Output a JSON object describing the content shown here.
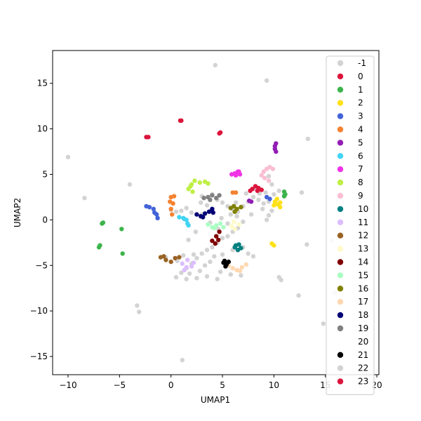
{
  "chart_data": {
    "type": "scatter",
    "title": "",
    "xlabel": "UMAP1",
    "ylabel": "UMAP2",
    "xlim": [
      -11.5,
      20.2
    ],
    "ylim": [
      -17.0,
      18.6
    ],
    "xticks": [
      -10,
      -5,
      0,
      5,
      10,
      15,
      20
    ],
    "yticks": [
      -15,
      -10,
      -5,
      0,
      5,
      10,
      15
    ],
    "grid": false,
    "legend_position": "upper-right",
    "series": [
      {
        "name": "-1",
        "color": "#d3d3d3",
        "points": [
          [
            -10.0,
            6.9
          ],
          [
            -8.4,
            2.4
          ],
          [
            -4.0,
            3.9
          ],
          [
            -3.3,
            -9.4
          ],
          [
            -3.1,
            -10.1
          ],
          [
            1.1,
            -15.4
          ],
          [
            4.3,
            17.0
          ],
          [
            9.3,
            15.3
          ],
          [
            13.3,
            8.9
          ],
          [
            12.7,
            3.0
          ],
          [
            13.2,
            -2.7
          ],
          [
            14.8,
            -11.4
          ],
          [
            10.5,
            -6.3
          ],
          [
            15.6,
            -2.3
          ],
          [
            3.0,
            2.6
          ],
          [
            3.5,
            1.6
          ],
          [
            4.0,
            2.8
          ],
          [
            4.5,
            2.2
          ],
          [
            5.0,
            1.9
          ],
          [
            5.5,
            1.5
          ],
          [
            6.0,
            1.2
          ],
          [
            6.5,
            0.9
          ],
          [
            7.0,
            1.5
          ],
          [
            7.5,
            2.0
          ],
          [
            8.0,
            2.5
          ],
          [
            8.5,
            2.2
          ],
          [
            9.0,
            1.8
          ],
          [
            9.5,
            2.0
          ],
          [
            10.0,
            2.8
          ],
          [
            10.5,
            3.2
          ],
          [
            11.0,
            2.7
          ],
          [
            9.8,
            1.0
          ],
          [
            9.5,
            0.5
          ],
          [
            9.3,
            0.0
          ],
          [
            8.9,
            1.2
          ],
          [
            7.8,
            0.6
          ],
          [
            7.0,
            -0.2
          ],
          [
            6.5,
            -0.9
          ],
          [
            6.0,
            -1.3
          ],
          [
            5.5,
            -1.8
          ],
          [
            5.0,
            -2.0
          ],
          [
            4.5,
            -2.5
          ],
          [
            4.0,
            -3.0
          ],
          [
            3.5,
            -3.3
          ],
          [
            3.0,
            -3.7
          ],
          [
            2.5,
            -4.2
          ],
          [
            2.0,
            -4.8
          ],
          [
            1.5,
            -5.3
          ],
          [
            1.0,
            -5.8
          ],
          [
            0.5,
            -6.3
          ],
          [
            1.5,
            -6.5
          ],
          [
            2.5,
            -6.4
          ],
          [
            3.5,
            -6.2
          ],
          [
            4.5,
            -6.5
          ],
          [
            1.8,
            -5.9
          ],
          [
            2.2,
            -3.8
          ],
          [
            3.8,
            -4.6
          ],
          [
            4.2,
            -4.0
          ],
          [
            5.0,
            -3.8
          ],
          [
            6.0,
            -3.3
          ],
          [
            7.0,
            -3.0
          ],
          [
            7.5,
            -3.7
          ],
          [
            8.0,
            -4.0
          ],
          [
            1.0,
            1.0
          ],
          [
            1.5,
            1.3
          ],
          [
            2.0,
            0.8
          ],
          [
            0.5,
            0.9
          ],
          [
            0.0,
            1.1
          ],
          [
            3.8,
            -0.3
          ],
          [
            4.6,
            -1.0
          ],
          [
            5.5,
            -0.4
          ],
          [
            6.4,
            0.4
          ],
          [
            8.2,
            3.4
          ],
          [
            9.5,
            4.8
          ],
          [
            9.8,
            3.9
          ],
          [
            9.2,
            3.0
          ],
          [
            8.6,
            2.9
          ],
          [
            7.3,
            2.9
          ],
          [
            6.3,
            1.9
          ],
          [
            5.8,
            0.6
          ],
          [
            3.0,
            0.6
          ],
          [
            1.2,
            -3.9
          ],
          [
            0.6,
            -4.5
          ],
          [
            -0.5,
            -4.1
          ],
          [
            2.8,
            -5.6
          ],
          [
            3.3,
            -5.0
          ],
          [
            4.8,
            -5.7
          ],
          [
            5.8,
            -6.0
          ],
          [
            6.8,
            -6.1
          ],
          [
            2.9,
            1.9
          ],
          [
            4.9,
            0.2
          ],
          [
            2.4,
            -1.3
          ],
          [
            1.7,
            -2.2
          ],
          [
            10.7,
            -6.6
          ],
          [
            12.4,
            -8.3
          ],
          [
            15.9,
            -8.0
          ]
        ]
      },
      {
        "name": "0",
        "color": "#dc143c",
        "points": [
          [
            -2.4,
            9.1
          ],
          [
            -2.2,
            9.1
          ],
          [
            0.9,
            10.9
          ],
          [
            1.0,
            10.9
          ],
          [
            4.7,
            9.5
          ],
          [
            4.8,
            9.6
          ],
          [
            7.9,
            3.4
          ],
          [
            8.2,
            3.7
          ],
          [
            8.5,
            3.5
          ],
          [
            8.8,
            3.3
          ],
          [
            7.7,
            3.2
          ],
          [
            8.4,
            3.2
          ],
          [
            6.5,
            -3.3
          ]
        ]
      },
      {
        "name": "1",
        "color": "#3cb44b",
        "points": [
          [
            -6.7,
            -0.4
          ],
          [
            -6.6,
            -0.3
          ],
          [
            -7.0,
            -3.0
          ],
          [
            -6.9,
            -2.8
          ],
          [
            -4.8,
            -1.0
          ],
          [
            -4.7,
            -3.7
          ],
          [
            11.0,
            3.1
          ],
          [
            11.1,
            2.8
          ],
          [
            11.0,
            2.6
          ]
        ]
      },
      {
        "name": "2",
        "color": "#ffe119",
        "points": [
          [
            10.1,
            2.0
          ],
          [
            10.4,
            1.7
          ],
          [
            10.6,
            1.9
          ],
          [
            10.3,
            2.3
          ],
          [
            10.0,
            1.6
          ],
          [
            10.6,
            1.4
          ],
          [
            9.8,
            -2.6
          ],
          [
            10.0,
            -2.8
          ]
        ]
      },
      {
        "name": "3",
        "color": "#4363d8",
        "points": [
          [
            -2.4,
            1.5
          ],
          [
            -2.1,
            1.4
          ],
          [
            -1.7,
            1.2
          ],
          [
            -1.4,
            0.6
          ],
          [
            -1.3,
            0.2
          ],
          [
            -1.6,
            0.8
          ],
          [
            9.3,
            2.5
          ],
          [
            9.6,
            2.3
          ]
        ]
      },
      {
        "name": "4",
        "color": "#f58231",
        "points": [
          [
            0.0,
            2.5
          ],
          [
            0.3,
            2.6
          ],
          [
            0.2,
            1.8
          ],
          [
            0.0,
            1.2
          ],
          [
            0.1,
            0.6
          ],
          [
            -0.1,
            2.0
          ],
          [
            6.0,
            3.0
          ],
          [
            6.3,
            3.0
          ]
        ]
      },
      {
        "name": "5",
        "color": "#911eb4",
        "points": [
          [
            10.2,
            8.4
          ],
          [
            10.1,
            7.8
          ],
          [
            10.2,
            7.5
          ],
          [
            10.1,
            8.1
          ],
          [
            7.6,
            2.1
          ],
          [
            7.8,
            2.0
          ]
        ]
      },
      {
        "name": "6",
        "color": "#42d4f4",
        "points": [
          [
            0.8,
            0.3
          ],
          [
            1.2,
            0.2
          ],
          [
            1.5,
            0.0
          ],
          [
            1.6,
            -0.4
          ],
          [
            1.7,
            -0.6
          ],
          [
            1.3,
            0.1
          ]
        ]
      },
      {
        "name": "7",
        "color": "#f032e6",
        "points": [
          [
            5.9,
            5.0
          ],
          [
            6.2,
            5.1
          ],
          [
            6.5,
            5.3
          ],
          [
            6.7,
            5.0
          ],
          [
            6.6,
            5.3
          ],
          [
            6.3,
            4.9
          ]
        ]
      },
      {
        "name": "8",
        "color": "#bfef45",
        "points": [
          [
            1.7,
            3.4
          ],
          [
            2.0,
            3.9
          ],
          [
            2.3,
            4.3
          ],
          [
            2.8,
            4.1
          ],
          [
            3.3,
            4.2
          ],
          [
            3.6,
            4.0
          ],
          [
            2.1,
            3.1
          ],
          [
            1.9,
            3.7
          ]
        ]
      },
      {
        "name": "9",
        "color": "#fabed4",
        "points": [
          [
            9.0,
            5.3
          ],
          [
            9.3,
            5.6
          ],
          [
            9.6,
            5.8
          ],
          [
            9.9,
            5.6
          ],
          [
            8.8,
            4.9
          ],
          [
            9.1,
            4.6
          ],
          [
            9.5,
            4.3
          ]
        ]
      },
      {
        "name": "10",
        "color": "#008080",
        "points": [
          [
            6.2,
            -3.0
          ],
          [
            6.5,
            -3.3
          ],
          [
            6.8,
            -3.1
          ],
          [
            6.3,
            -2.8
          ],
          [
            6.6,
            -2.7
          ]
        ]
      },
      {
        "name": "11",
        "color": "#dcbeff",
        "points": [
          [
            1.1,
            -4.8
          ],
          [
            1.5,
            -5.2
          ],
          [
            2.0,
            -5.1
          ],
          [
            1.6,
            -4.4
          ],
          [
            2.2,
            -4.7
          ],
          [
            1.3,
            -5.5
          ]
        ]
      },
      {
        "name": "12",
        "color": "#9a6324",
        "points": [
          [
            -1.0,
            -4.1
          ],
          [
            -0.5,
            -4.4
          ],
          [
            0.0,
            -4.6
          ],
          [
            0.4,
            -4.2
          ],
          [
            0.8,
            -4.1
          ],
          [
            -0.7,
            -4.0
          ]
        ]
      },
      {
        "name": "13",
        "color": "#fffac8",
        "points": [
          [
            5.9,
            -0.7
          ],
          [
            6.2,
            -1.0
          ],
          [
            6.6,
            -0.5
          ],
          [
            6.1,
            -0.2
          ]
        ]
      },
      {
        "name": "14",
        "color": "#800000",
        "points": [
          [
            4.0,
            -2.3
          ],
          [
            4.3,
            -2.6
          ],
          [
            4.6,
            -2.2
          ],
          [
            4.4,
            -1.8
          ],
          [
            4.7,
            -1.3
          ]
        ]
      },
      {
        "name": "15",
        "color": "#aaffc3",
        "points": [
          [
            3.6,
            -0.5
          ],
          [
            4.0,
            -0.8
          ],
          [
            4.4,
            -0.6
          ],
          [
            4.8,
            -0.4
          ],
          [
            5.1,
            -0.8
          ],
          [
            4.2,
            -0.9
          ]
        ]
      },
      {
        "name": "16",
        "color": "#808000",
        "points": [
          [
            5.8,
            1.3
          ],
          [
            6.1,
            1.5
          ],
          [
            6.4,
            1.2
          ],
          [
            6.8,
            1.4
          ],
          [
            6.2,
            0.9
          ]
        ]
      },
      {
        "name": "17",
        "color": "#ffd8b1",
        "points": [
          [
            5.6,
            -5.0
          ],
          [
            6.0,
            -5.3
          ],
          [
            6.4,
            -5.5
          ],
          [
            6.9,
            -5.2
          ],
          [
            7.3,
            -4.9
          ],
          [
            6.7,
            -5.6
          ]
        ]
      },
      {
        "name": "18",
        "color": "#000075",
        "points": [
          [
            2.5,
            0.6
          ],
          [
            2.9,
            0.4
          ],
          [
            3.3,
            0.7
          ],
          [
            3.7,
            0.9
          ],
          [
            4.0,
            1.2
          ],
          [
            4.1,
            0.8
          ],
          [
            3.1,
            0.3
          ]
        ]
      },
      {
        "name": "19",
        "color": "#808080",
        "points": [
          [
            3.2,
            2.4
          ],
          [
            3.6,
            2.5
          ],
          [
            4.0,
            2.7
          ],
          [
            4.4,
            2.4
          ],
          [
            4.7,
            2.7
          ],
          [
            3.8,
            2.2
          ]
        ]
      },
      {
        "name": "20",
        "color": "#ffffff",
        "points": []
      },
      {
        "name": "21",
        "color": "#000000",
        "points": [
          [
            5.1,
            -4.7
          ],
          [
            5.4,
            -4.9
          ],
          [
            5.6,
            -4.6
          ],
          [
            5.3,
            -5.1
          ],
          [
            5.2,
            -4.5
          ]
        ]
      },
      {
        "name": "22",
        "color": "#d3d3d3",
        "points": []
      },
      {
        "name": "23",
        "color": "#dc143c",
        "points": []
      }
    ]
  }
}
